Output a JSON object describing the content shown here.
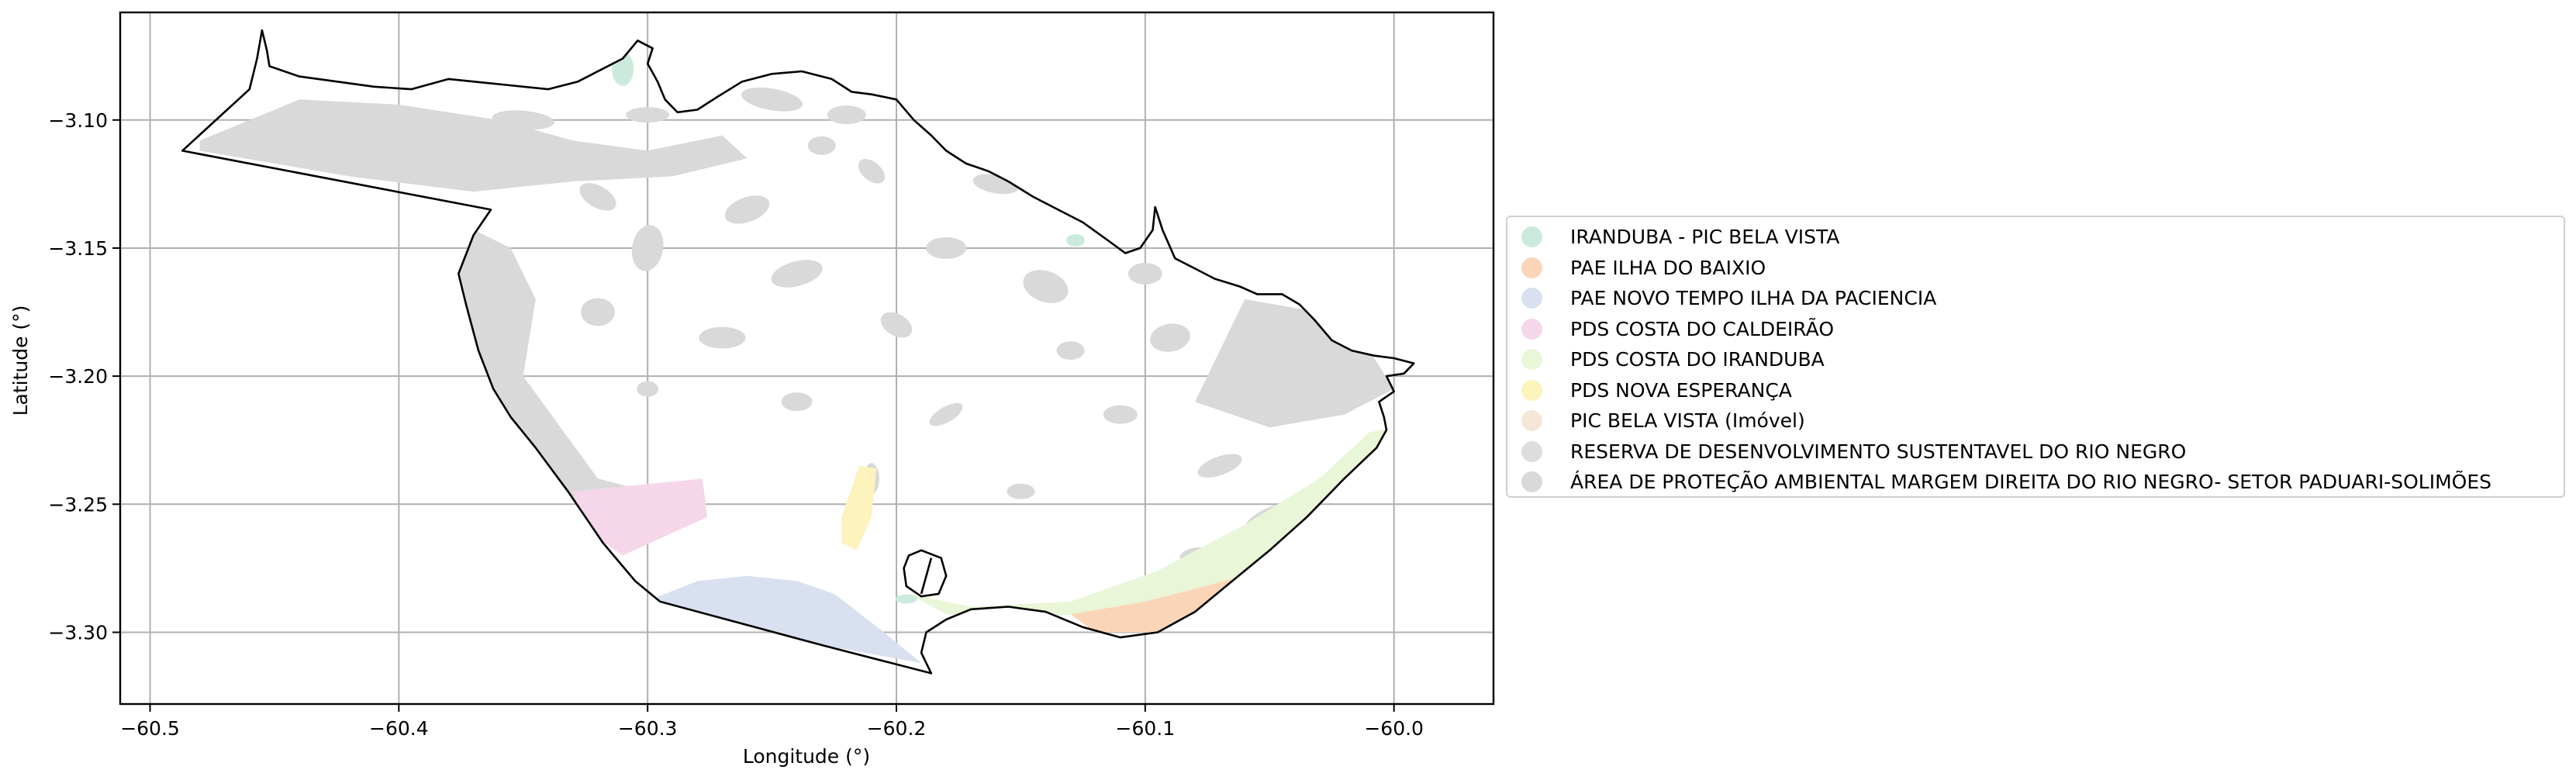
{
  "map": {
    "xlabel": "Longitude (°)",
    "ylabel": "Latitude (°)",
    "xlim": [
      -60.512,
      -59.96
    ],
    "ylim": [
      -3.328,
      -3.058
    ],
    "x_ticks": [
      -60.5,
      -60.4,
      -60.3,
      -60.2,
      -60.1,
      -60.0
    ],
    "x_tick_labels": [
      "−60.5",
      "−60.4",
      "−60.3",
      "−60.2",
      "−60.1",
      "−60.0"
    ],
    "y_ticks": [
      -3.1,
      -3.15,
      -3.2,
      -3.25,
      -3.3
    ],
    "y_tick_labels": [
      "−3.10",
      "−3.15",
      "−3.20",
      "−3.25",
      "−3.30"
    ],
    "grid": true,
    "legend_placement": "right, outside plot area",
    "boundary_color": "#000000",
    "layers": [
      {
        "name": "IRANDUBA - PIC BELA VISTA",
        "color": "#cbeadb"
      },
      {
        "name": "PAE ILHA DO BAIXIO",
        "color": "#fbd5b8"
      },
      {
        "name": "PAE NOVO TEMPO ILHA DA PACIENCIA",
        "color": "#d9e0ef"
      },
      {
        "name": "PDS COSTA DO CALDEIRÃO",
        "color": "#f6d7ea"
      },
      {
        "name": "PDS COSTA DO IRANDUBA",
        "color": "#e9f6d8"
      },
      {
        "name": "PDS NOVA ESPERANÇA",
        "color": "#fdf3bd"
      },
      {
        "name": "PIC BELA VISTA (Imóvel)",
        "color": "#f6e6d8"
      },
      {
        "name": "RESERVA DE DESENVOLVIMENTO SUSTENTAVEL DO RIO NEGRO",
        "color": "#dddddd"
      },
      {
        "name": "ÁREA DE PROTEÇÃO AMBIENTAL MARGEM DIREITA DO RIO NEGRO- SETOR PADUARI-SOLIMÕES",
        "color": "#d9d9d9"
      }
    ],
    "boundary": [
      [
        -60.487,
        -3.112
      ],
      [
        -60.46,
        -3.088
      ],
      [
        -60.457,
        -3.076
      ],
      [
        -60.455,
        -3.065
      ],
      [
        -60.453,
        -3.073
      ],
      [
        -60.452,
        -3.079
      ],
      [
        -60.44,
        -3.083
      ],
      [
        -60.41,
        -3.087
      ],
      [
        -60.395,
        -3.088
      ],
      [
        -60.38,
        -3.084
      ],
      [
        -60.36,
        -3.086
      ],
      [
        -60.34,
        -3.088
      ],
      [
        -60.328,
        -3.085
      ],
      [
        -60.318,
        -3.08
      ],
      [
        -60.31,
        -3.076
      ],
      [
        -60.304,
        -3.069
      ],
      [
        -60.298,
        -3.072
      ],
      [
        -60.3,
        -3.078
      ],
      [
        -60.296,
        -3.085
      ],
      [
        -60.293,
        -3.092
      ],
      [
        -60.288,
        -3.097
      ],
      [
        -60.28,
        -3.096
      ],
      [
        -60.272,
        -3.091
      ],
      [
        -60.262,
        -3.085
      ],
      [
        -60.25,
        -3.082
      ],
      [
        -60.238,
        -3.081
      ],
      [
        -60.226,
        -3.084
      ],
      [
        -60.218,
        -3.089
      ],
      [
        -60.21,
        -3.09
      ],
      [
        -60.2,
        -3.092
      ],
      [
        -60.193,
        -3.1
      ],
      [
        -60.186,
        -3.106
      ],
      [
        -60.18,
        -3.112
      ],
      [
        -60.172,
        -3.117
      ],
      [
        -60.163,
        -3.12
      ],
      [
        -60.155,
        -3.124
      ],
      [
        -60.145,
        -3.13
      ],
      [
        -60.135,
        -3.135
      ],
      [
        -60.125,
        -3.14
      ],
      [
        -60.115,
        -3.147
      ],
      [
        -60.108,
        -3.152
      ],
      [
        -60.102,
        -3.15
      ],
      [
        -60.097,
        -3.143
      ],
      [
        -60.096,
        -3.134
      ],
      [
        -60.093,
        -3.143
      ],
      [
        -60.088,
        -3.154
      ],
      [
        -60.08,
        -3.158
      ],
      [
        -60.072,
        -3.162
      ],
      [
        -60.062,
        -3.165
      ],
      [
        -60.055,
        -3.168
      ],
      [
        -60.045,
        -3.168
      ],
      [
        -60.038,
        -3.172
      ],
      [
        -60.032,
        -3.178
      ],
      [
        -60.025,
        -3.186
      ],
      [
        -60.017,
        -3.19
      ],
      [
        -60.008,
        -3.192
      ],
      [
        -60.0,
        -3.193
      ],
      [
        -59.992,
        -3.195
      ],
      [
        -59.996,
        -3.199
      ],
      [
        -60.003,
        -3.2
      ],
      [
        -60.0,
        -3.206
      ],
      [
        -60.006,
        -3.21
      ],
      [
        -60.004,
        -3.216
      ],
      [
        -60.003,
        -3.221
      ],
      [
        -60.007,
        -3.228
      ],
      [
        -60.02,
        -3.24
      ],
      [
        -60.035,
        -3.255
      ],
      [
        -60.05,
        -3.268
      ],
      [
        -60.065,
        -3.28
      ],
      [
        -60.08,
        -3.292
      ],
      [
        -60.095,
        -3.3
      ],
      [
        -60.11,
        -3.302
      ],
      [
        -60.125,
        -3.298
      ],
      [
        -60.14,
        -3.292
      ],
      [
        -60.155,
        -3.29
      ],
      [
        -60.17,
        -3.291
      ],
      [
        -60.18,
        -3.295
      ],
      [
        -60.188,
        -3.3
      ],
      [
        -60.19,
        -3.308
      ],
      [
        -60.186,
        -3.316
      ],
      [
        -60.23,
        -3.305
      ],
      [
        -60.295,
        -3.288
      ],
      [
        -60.305,
        -3.28
      ],
      [
        -60.318,
        -3.265
      ],
      [
        -60.332,
        -3.245
      ],
      [
        -60.345,
        -3.228
      ],
      [
        -60.355,
        -3.216
      ],
      [
        -60.362,
        -3.205
      ],
      [
        -60.368,
        -3.19
      ],
      [
        -60.373,
        -3.172
      ],
      [
        -60.376,
        -3.16
      ],
      [
        -60.37,
        -3.145
      ],
      [
        -60.363,
        -3.135
      ],
      [
        -60.487,
        -3.112
      ]
    ],
    "island": [
      [
        -60.195,
        -3.27
      ],
      [
        -60.19,
        -3.268
      ],
      [
        -60.182,
        -3.271
      ],
      [
        -60.18,
        -3.278
      ],
      [
        -60.183,
        -3.285
      ],
      [
        -60.19,
        -3.286
      ],
      [
        -60.196,
        -3.282
      ],
      [
        -60.197,
        -3.275
      ],
      [
        -60.195,
        -3.27
      ]
    ]
  }
}
